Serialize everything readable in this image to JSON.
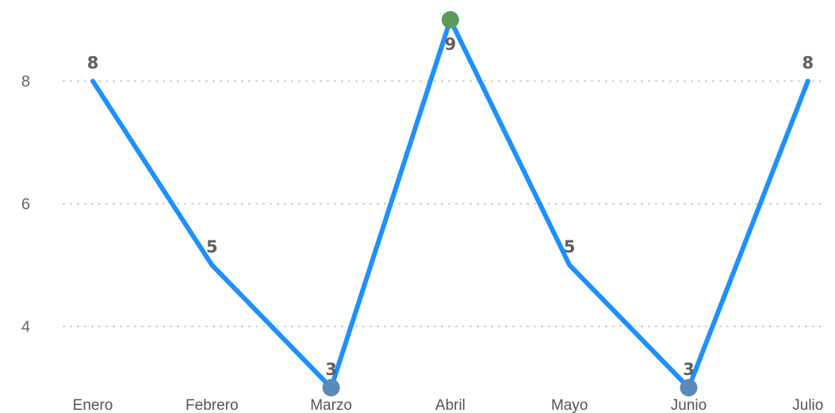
{
  "chart_data": {
    "type": "line",
    "categories": [
      "Enero",
      "Febrero",
      "Marzo",
      "Abril",
      "Mayo",
      "Junio",
      "Julio"
    ],
    "series": [
      {
        "values": [
          8,
          5,
          3,
          9,
          5,
          3,
          8
        ]
      }
    ],
    "yticks": [
      4,
      6,
      8
    ],
    "ylim": [
      3,
      9
    ],
    "grid": true,
    "data_labels": true,
    "colors": {
      "line": "#1E90FF",
      "max_marker": "#5B9A5B",
      "min_marker": "#5B8AB8",
      "grid": "#C8C8C8"
    }
  }
}
